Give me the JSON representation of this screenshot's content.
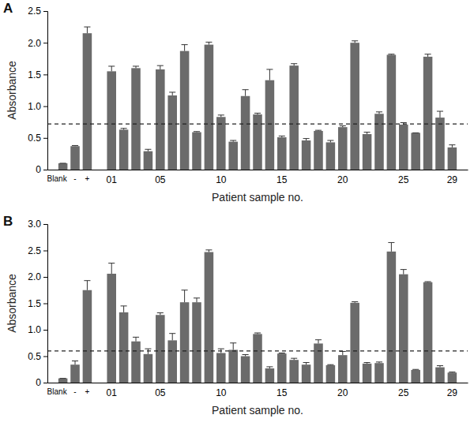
{
  "chart_data": [
    {
      "type": "bar",
      "title": "A",
      "x_label": "Patient sample no.",
      "y_label": "Absorbance",
      "categories": [
        "Blank",
        "-",
        "+",
        null,
        "01",
        null,
        null,
        null,
        "05",
        null,
        null,
        null,
        null,
        "10",
        null,
        null,
        null,
        null,
        "15",
        null,
        null,
        null,
        null,
        "20",
        null,
        null,
        null,
        null,
        "25",
        null,
        null,
        null,
        "29"
      ],
      "values": [
        0.1,
        0.37,
        2.15,
        null,
        1.55,
        0.63,
        1.6,
        0.29,
        1.58,
        1.17,
        1.87,
        0.59,
        1.97,
        0.83,
        0.44,
        1.16,
        0.87,
        1.41,
        0.51,
        1.64,
        0.46,
        0.61,
        0.43,
        0.67,
        2.0,
        0.56,
        0.88,
        1.81,
        0.71,
        0.58,
        1.78,
        0.82,
        0.35
      ],
      "errors": [
        0,
        0.01,
        0.1,
        null,
        0.08,
        0.02,
        0.03,
        0.03,
        0.06,
        0.05,
        0.1,
        0.01,
        0.04,
        0.03,
        0.02,
        0.1,
        0.02,
        0.17,
        0.02,
        0.03,
        0.03,
        0.01,
        0.03,
        0.02,
        0.03,
        0.03,
        0.03,
        0.01,
        0.03,
        0,
        0.04,
        0.1,
        0.04
      ],
      "threshold": 0.72,
      "color": "#6b6b6b",
      "ylim": [
        0,
        2.5
      ],
      "yticks": [
        0,
        0.5,
        {
          "value": 1,
          "label": "1.0"
        },
        1.5,
        {
          "value": 2,
          "label": "2.0"
        },
        2.5
      ]
    },
    {
      "type": "bar",
      "title": "B",
      "x_label": "Patient sample no.",
      "y_label": "Absorbance",
      "categories": [
        "Blank",
        "-",
        "+",
        null,
        "01",
        null,
        null,
        null,
        "05",
        null,
        null,
        null,
        null,
        "10",
        null,
        null,
        null,
        null,
        "15",
        null,
        null,
        null,
        null,
        "20",
        null,
        null,
        null,
        null,
        "25",
        null,
        null,
        null,
        "29"
      ],
      "values": [
        0.08,
        0.34,
        1.75,
        null,
        2.06,
        1.33,
        0.78,
        0.54,
        1.28,
        0.8,
        1.52,
        1.52,
        2.47,
        0.56,
        0.62,
        0.5,
        0.92,
        0.27,
        0.55,
        0.43,
        0.34,
        0.74,
        0.33,
        0.52,
        1.51,
        0.36,
        0.37,
        2.48,
        2.05,
        0.24,
        1.9,
        0.29,
        0.19
      ],
      "errors": [
        0,
        0.07,
        0.18,
        null,
        0.2,
        0.12,
        0.08,
        0.1,
        0.04,
        0.13,
        0.23,
        0.08,
        0.04,
        0.08,
        0.13,
        0.03,
        0.02,
        0.03,
        0.01,
        0.03,
        0.04,
        0.07,
        0.01,
        0.07,
        0.02,
        0.02,
        0.02,
        0.17,
        0.09,
        0.01,
        0.01,
        0.03,
        0.01
      ],
      "threshold": 0.6,
      "color": "#6b6b6b",
      "ylim": [
        0,
        3.0
      ],
      "yticks": [
        0,
        0.5,
        {
          "value": 1,
          "label": "1.0"
        },
        1.5,
        {
          "value": 2,
          "label": "2.0"
        },
        2.5,
        {
          "value": 3,
          "label": "3.0"
        }
      ]
    }
  ]
}
